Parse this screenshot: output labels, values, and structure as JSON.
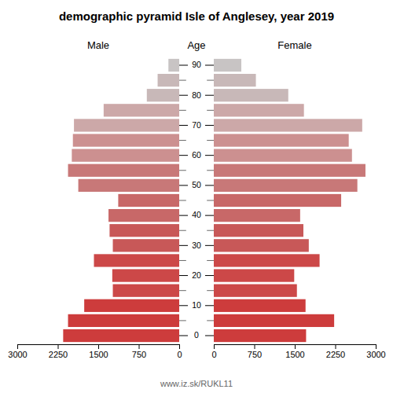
{
  "chart_data": {
    "type": "bar",
    "orientation": "horizontal",
    "title": "demographic pyramid Isle of Anglesey, year 2019",
    "ylabel": "Age",
    "footer": "www.iz.sk/RUKL11",
    "categories": [
      "0",
      null,
      "10",
      null,
      "20",
      null,
      "30",
      null,
      "40",
      null,
      "50",
      null,
      "60",
      null,
      "70",
      null,
      "80",
      null,
      "90"
    ],
    "series": [
      {
        "name": "Male",
        "values": [
          2150,
          2060,
          1760,
          1230,
          1240,
          1580,
          1230,
          1290,
          1310,
          1130,
          1870,
          2060,
          1990,
          1970,
          1950,
          1400,
          600,
          400,
          200
        ],
        "colors": [
          "#cd3c3c",
          "#cd3c3c",
          "#cd3c3c",
          "#cc4848",
          "#cc4848",
          "#cc4848",
          "#c85858",
          "#c85858",
          "#c86868",
          "#c86868",
          "#c87878",
          "#c87878",
          "#cc9090",
          "#cc9090",
          "#cca8a8",
          "#cca8a8",
          "#c8b8b8",
          "#c8b8b8",
          "#c8c4c4"
        ]
      },
      {
        "name": "Female",
        "values": [
          1710,
          2230,
          1700,
          1540,
          1490,
          1960,
          1760,
          1660,
          1600,
          2360,
          2660,
          2810,
          2560,
          2500,
          2750,
          1670,
          1380,
          780,
          510
        ],
        "colors": [
          "#cd3c3c",
          "#cd3c3c",
          "#cd3c3c",
          "#cc4848",
          "#cc4848",
          "#cc4848",
          "#c85858",
          "#c85858",
          "#c86868",
          "#c86868",
          "#c87878",
          "#c87878",
          "#cc9090",
          "#cc9090",
          "#cca8a8",
          "#cca8a8",
          "#c8b8b8",
          "#c8b8b8",
          "#c8c4c4"
        ]
      }
    ],
    "xlim": [
      0,
      3000
    ],
    "xticks": [
      0,
      750,
      1500,
      2250,
      3000
    ],
    "grid": false
  }
}
